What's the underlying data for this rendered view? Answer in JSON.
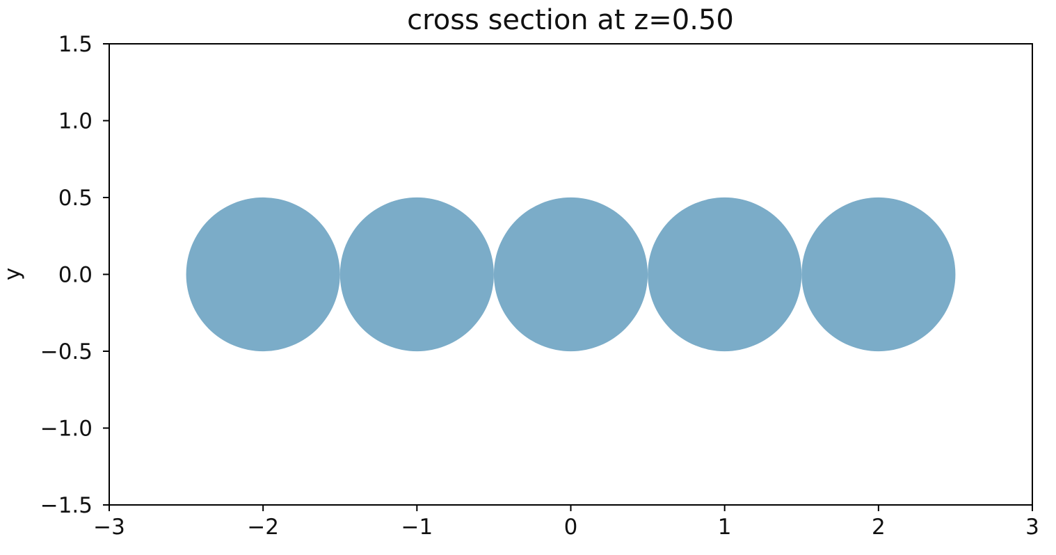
{
  "chart_data": {
    "type": "scatter",
    "title": "cross section at z=0.50",
    "xlabel": "",
    "ylabel": "y",
    "xlim": [
      -3,
      3
    ],
    "ylim": [
      -1.5,
      1.5
    ],
    "x_ticks": [
      -3,
      -2,
      -1,
      0,
      1,
      2,
      3
    ],
    "x_tick_labels": [
      "−3",
      "−2",
      "−1",
      "0",
      "1",
      "2",
      "3"
    ],
    "y_ticks": [
      -1.5,
      -1.0,
      -0.5,
      0.0,
      0.5,
      1.0,
      1.5
    ],
    "y_tick_labels": [
      "−1.5",
      "−1.0",
      "−0.5",
      "0.0",
      "0.5",
      "1.0",
      "1.5"
    ],
    "grid": false,
    "circle_color": "#7bacc8",
    "circles": [
      {
        "x": -2,
        "y": 0,
        "r": 0.5
      },
      {
        "x": -1,
        "y": 0,
        "r": 0.5
      },
      {
        "x": 0,
        "y": 0,
        "r": 0.5
      },
      {
        "x": 1,
        "y": 0,
        "r": 0.5
      },
      {
        "x": 2,
        "y": 0,
        "r": 0.5
      }
    ]
  }
}
